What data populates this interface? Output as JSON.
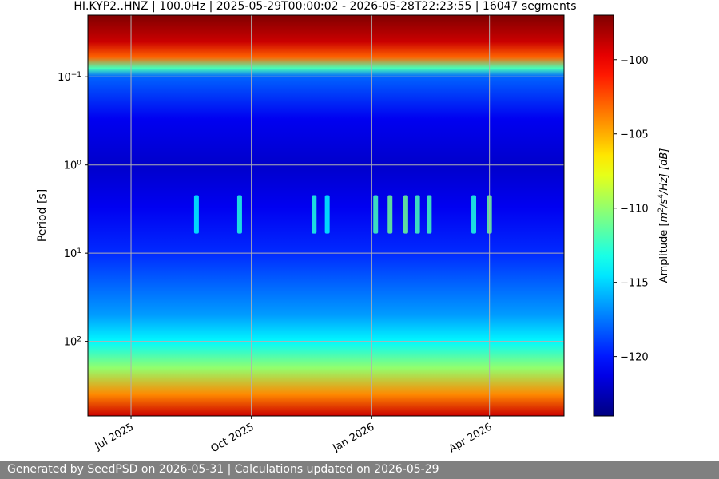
{
  "footer": {
    "text": "Generated by SeedPSD on 2026-05-31 | Calculations updated on 2026-05-29"
  },
  "chart_data": {
    "type": "heatmap",
    "title": "HI.KYP2..HNZ | 100.0Hz | 2025-05-29T00:00:02 - 2026-05-28T22:23:55 | 16047 segments",
    "ylabel": "Period [s]",
    "yscale": "log",
    "yaxis_inverted": true,
    "ylim": [
      0.02,
      700
    ],
    "y_ticks": [
      {
        "value": 0.1,
        "base": "10",
        "exp": "−1"
      },
      {
        "value": 1,
        "base": "10",
        "exp": "0"
      },
      {
        "value": 10,
        "base": "10",
        "exp": "1"
      },
      {
        "value": 100,
        "base": "10",
        "exp": "2"
      }
    ],
    "xlim": [
      "2025-05-29",
      "2026-05-28"
    ],
    "x_ticks": [
      {
        "date": "2025-07-01",
        "label": "Jul 2025"
      },
      {
        "date": "2025-10-01",
        "label": "Oct 2025"
      },
      {
        "date": "2026-01-01",
        "label": "Jan 2026"
      },
      {
        "date": "2026-04-01",
        "label": "Apr 2026"
      }
    ],
    "grid": true,
    "colorbar": {
      "label_prefix": "Amplitude [",
      "label_math": "m",
      "label_sup1": "2",
      "label_mid": "/s",
      "label_sup2": "4",
      "label_end": "/Hz] [dB]",
      "range": [
        -124,
        -97
      ],
      "ticks": [
        -100,
        -105,
        -110,
        -115,
        -120
      ],
      "tick_labels": [
        "−100",
        "−105",
        "−110",
        "−115",
        "−120"
      ],
      "colormap": "jet"
    },
    "period_profile": [
      {
        "period": 0.02,
        "db": -97
      },
      {
        "period": 0.04,
        "db": -99
      },
      {
        "period": 0.06,
        "db": -103
      },
      {
        "period": 0.08,
        "db": -112
      },
      {
        "period": 0.1,
        "db": -118
      },
      {
        "period": 0.3,
        "db": -121
      },
      {
        "period": 1,
        "db": -122
      },
      {
        "period": 3,
        "db": -121
      },
      {
        "period": 10,
        "db": -119.5
      },
      {
        "period": 50,
        "db": -116.5
      },
      {
        "period": 100,
        "db": -114
      },
      {
        "period": 200,
        "db": -110
      },
      {
        "period": 400,
        "db": -104
      },
      {
        "period": 700,
        "db": -99
      }
    ],
    "microseism_bursts": [
      {
        "date": "2025-08-20",
        "db": -114
      },
      {
        "date": "2025-09-22",
        "db": -113
      },
      {
        "date": "2025-11-18",
        "db": -113
      },
      {
        "date": "2025-11-28",
        "db": -114
      },
      {
        "date": "2026-01-04",
        "db": -112
      },
      {
        "date": "2026-01-15",
        "db": -111
      },
      {
        "date": "2026-01-27",
        "db": -111
      },
      {
        "date": "2026-02-05",
        "db": -112
      },
      {
        "date": "2026-02-14",
        "db": -112
      },
      {
        "date": "2026-03-20",
        "db": -113
      },
      {
        "date": "2026-04-01",
        "db": -111
      }
    ]
  }
}
